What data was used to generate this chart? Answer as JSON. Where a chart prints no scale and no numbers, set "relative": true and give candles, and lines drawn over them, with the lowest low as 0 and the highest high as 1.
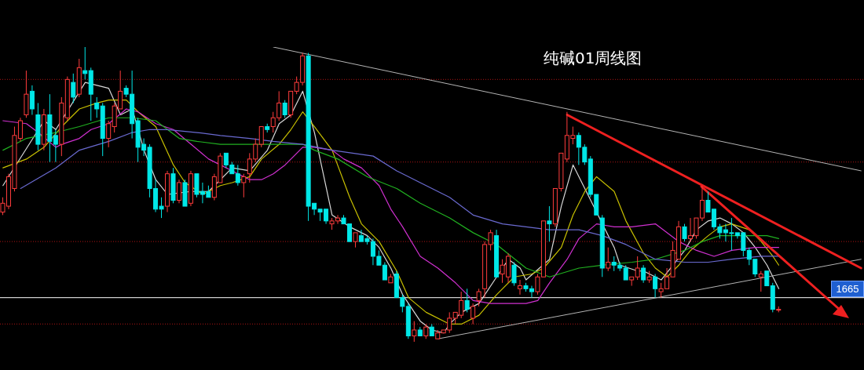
{
  "chart_data": {
    "type": "candlestick",
    "title": "纯碱01周线图",
    "relative": true,
    "tick_labels": false,
    "annotations": [
      "1665"
    ],
    "categories": [
      null,
      null,
      null,
      null,
      null,
      null,
      null,
      null,
      null,
      null,
      null,
      null,
      null,
      null,
      null,
      null,
      null,
      null,
      null,
      null,
      null,
      null,
      null,
      null,
      null,
      null,
      null,
      null,
      null,
      null,
      null,
      null,
      null,
      null,
      null,
      null,
      null,
      null,
      null,
      null,
      null,
      null,
      null,
      null,
      null,
      null,
      null,
      null,
      null,
      null,
      null,
      null,
      null,
      null,
      null,
      null,
      null,
      null,
      null,
      null,
      null,
      null,
      null,
      null,
      null,
      null,
      null,
      null,
      null,
      null,
      null,
      null,
      null,
      null,
      null,
      null,
      null,
      null,
      null,
      null,
      null,
      null,
      null,
      null,
      null,
      null,
      null,
      null,
      null,
      null,
      null,
      null,
      null,
      null,
      null,
      null,
      null,
      null,
      null,
      null,
      null,
      null,
      null,
      null,
      null,
      null,
      null,
      null,
      null,
      null,
      null,
      null,
      null,
      null,
      null,
      null,
      null,
      null,
      null,
      null,
      null,
      null,
      null,
      null,
      null,
      null,
      null,
      null,
      null,
      null,
      null,
      null,
      null,
      null,
      null,
      null,
      null,
      null,
      null,
      null,
      null,
      null,
      null,
      null,
      null,
      null,
      null
    ],
    "ohlc": [
      [
        0.44,
        0.49,
        0.43,
        0.47
      ],
      [
        0.46,
        0.57,
        0.45,
        0.56
      ],
      [
        0.52,
        0.73,
        0.51,
        0.7
      ],
      [
        0.69,
        0.76,
        0.68,
        0.75
      ],
      [
        0.77,
        0.92,
        0.76,
        0.84
      ],
      [
        0.85,
        0.87,
        0.77,
        0.79
      ],
      [
        0.77,
        0.81,
        0.65,
        0.67
      ],
      [
        0.67,
        0.79,
        0.65,
        0.77
      ],
      [
        0.77,
        0.84,
        0.61,
        0.68
      ],
      [
        0.7,
        0.72,
        0.61,
        0.67
      ],
      [
        0.67,
        0.83,
        0.63,
        0.81
      ],
      [
        0.76,
        0.9,
        0.75,
        0.89
      ],
      [
        0.88,
        0.91,
        0.81,
        0.83
      ],
      [
        0.84,
        0.96,
        0.83,
        0.93
      ],
      [
        0.92,
        1,
        0.89,
        0.91
      ],
      [
        0.92,
        0.93,
        0.75,
        0.84
      ],
      [
        0.81,
        0.83,
        0.76,
        0.79
      ],
      [
        0.8,
        0.81,
        0.63,
        0.69
      ],
      [
        0.69,
        0.75,
        0.66,
        0.74
      ],
      [
        0.73,
        0.81,
        0.71,
        0.8
      ],
      [
        0.79,
        0.92,
        0.79,
        0.85
      ],
      [
        0.86,
        0.87,
        0.83,
        0.84
      ],
      [
        0.84,
        0.92,
        0.69,
        0.74
      ],
      [
        0.75,
        0.76,
        0.61,
        0.66
      ],
      [
        0.67,
        0.69,
        0.63,
        0.65
      ],
      [
        0.66,
        0.67,
        0.49,
        0.52
      ],
      [
        0.52,
        0.55,
        0.44,
        0.45
      ],
      [
        0.46,
        0.49,
        0.42,
        0.45
      ],
      [
        0.46,
        0.58,
        0.44,
        0.57
      ],
      [
        0.57,
        0.59,
        0.47,
        0.48
      ],
      [
        0.48,
        0.55,
        0.47,
        0.54
      ],
      [
        0.54,
        0.55,
        0.46,
        0.46
      ],
      [
        0.47,
        0.58,
        0.46,
        0.57
      ],
      [
        0.57,
        0.57,
        0.49,
        0.5
      ],
      [
        0.51,
        0.54,
        0.47,
        0.5
      ],
      [
        0.51,
        0.53,
        0.49,
        0.49
      ],
      [
        0.49,
        0.57,
        0.48,
        0.56
      ],
      [
        0.54,
        0.64,
        0.54,
        0.63
      ],
      [
        0.64,
        0.64,
        0.59,
        0.6
      ],
      [
        0.6,
        0.61,
        0.57,
        0.57
      ],
      [
        0.57,
        0.6,
        0.53,
        0.54
      ],
      [
        0.54,
        0.57,
        0.49,
        0.56
      ],
      [
        0.57,
        0.64,
        0.54,
        0.62
      ],
      [
        0.62,
        0.69,
        0.61,
        0.67
      ],
      [
        0.67,
        0.73,
        0.66,
        0.73
      ],
      [
        0.73,
        0.74,
        0.71,
        0.72
      ],
      [
        0.73,
        0.78,
        0.71,
        0.76
      ],
      [
        0.76,
        0.85,
        0.75,
        0.81
      ],
      [
        0.81,
        0.82,
        0.76,
        0.77
      ],
      [
        0.77,
        0.85,
        0.76,
        0.85
      ],
      [
        0.85,
        0.9,
        0.84,
        0.88
      ],
      [
        0.88,
        0.98,
        0.87,
        0.97
      ],
      [
        0.97,
        0.98,
        0.41,
        0.46
      ],
      [
        0.47,
        0.47,
        0.43,
        0.45
      ],
      [
        0.45,
        0.45,
        0.41,
        0.44
      ],
      [
        0.45,
        0.45,
        0.4,
        0.41
      ],
      [
        0.4,
        0.42,
        0.38,
        0.41
      ],
      [
        0.41,
        0.43,
        0.4,
        0.42
      ],
      [
        0.42,
        0.43,
        0.4,
        0.4
      ],
      [
        0.4,
        0.4,
        0.34,
        0.34
      ],
      [
        0.34,
        0.37,
        0.32,
        0.37
      ],
      [
        0.36,
        0.38,
        0.34,
        0.34
      ],
      [
        0.35,
        0.36,
        0.33,
        0.34
      ],
      [
        0.34,
        0.35,
        0.26,
        0.29
      ],
      [
        0.29,
        0.31,
        0.26,
        0.26
      ],
      [
        0.26,
        0.27,
        0.21,
        0.21
      ],
      [
        0.2,
        0.23,
        0.2,
        0.22
      ],
      [
        0.23,
        0.24,
        0.15,
        0.15
      ],
      [
        0.15,
        0.16,
        0.1,
        0.12
      ],
      [
        0.12,
        0.13,
        0.01,
        0.02
      ],
      [
        0.02,
        0.07,
        0,
        0.04
      ],
      [
        0.04,
        0.05,
        0.02,
        0.02
      ],
      [
        0.02,
        0.06,
        0.01,
        0.05
      ],
      [
        0.05,
        0.06,
        0.02,
        0.02
      ],
      [
        0.01,
        0.04,
        0.01,
        0.03
      ],
      [
        0.03,
        0.04,
        0.03,
        0.04
      ],
      [
        0.04,
        0.1,
        0.03,
        0.08
      ],
      [
        0.08,
        0.1,
        0.06,
        0.1
      ],
      [
        0.09,
        0.17,
        0.08,
        0.14
      ],
      [
        0.14,
        0.18,
        0.1,
        0.11
      ],
      [
        0.08,
        0.13,
        0.06,
        0.12
      ],
      [
        0.14,
        0.18,
        0.12,
        0.17
      ],
      [
        0.18,
        0.34,
        0.15,
        0.33
      ],
      [
        0.33,
        0.38,
        0.31,
        0.37
      ],
      [
        0.36,
        0.38,
        0.22,
        0.22
      ],
      [
        0.23,
        0.28,
        0.2,
        0.26
      ],
      [
        0.22,
        0.3,
        0.2,
        0.29
      ],
      [
        0.26,
        0.27,
        0.19,
        0.2
      ],
      [
        0.18,
        0.21,
        0.16,
        0.19
      ],
      [
        0.19,
        0.2,
        0.17,
        0.18
      ],
      [
        0.18,
        0.19,
        0.15,
        0.17
      ],
      [
        0.17,
        0.23,
        0.16,
        0.22
      ],
      [
        0.22,
        0.41,
        0.22,
        0.41
      ],
      [
        0.41,
        0.46,
        0.34,
        0.4
      ],
      [
        0.4,
        0.52,
        0.39,
        0.52
      ],
      [
        0.52,
        0.64,
        0.51,
        0.64
      ],
      [
        0.62,
        0.78,
        0.61,
        0.7
      ],
      [
        0.69,
        0.73,
        0.67,
        0.7
      ],
      [
        0.7,
        0.71,
        0.6,
        0.66
      ],
      [
        0.66,
        0.67,
        0.6,
        0.61
      ],
      [
        0.62,
        0.63,
        0.49,
        0.5
      ],
      [
        0.5,
        0.5,
        0.43,
        0.43
      ],
      [
        0.42,
        0.43,
        0.22,
        0.25
      ],
      [
        0.25,
        0.32,
        0.24,
        0.27
      ],
      [
        0.27,
        0.29,
        0.24,
        0.26
      ],
      [
        0.26,
        0.27,
        0.24,
        0.25
      ],
      [
        0.25,
        0.26,
        0.21,
        0.21
      ],
      [
        0.21,
        0.22,
        0.19,
        0.22
      ],
      [
        0.22,
        0.29,
        0.21,
        0.25
      ],
      [
        0.25,
        0.26,
        0.2,
        0.21
      ],
      [
        0.21,
        0.24,
        0.2,
        0.22
      ],
      [
        0.22,
        0.23,
        0.15,
        0.18
      ],
      [
        0.17,
        0.2,
        0.15,
        0.18
      ],
      [
        0.18,
        0.25,
        0.18,
        0.22
      ],
      [
        0.22,
        0.34,
        0.22,
        0.31
      ],
      [
        0.28,
        0.41,
        0.28,
        0.39
      ],
      [
        0.39,
        0.4,
        0.34,
        0.35
      ],
      [
        0.35,
        0.42,
        0.34,
        0.36
      ],
      [
        0.36,
        0.42,
        0.35,
        0.42
      ],
      [
        0.42,
        0.53,
        0.41,
        0.48
      ],
      [
        0.48,
        0.51,
        0.44,
        0.44
      ],
      [
        0.45,
        0.45,
        0.38,
        0.39
      ],
      [
        0.39,
        0.4,
        0.35,
        0.37
      ],
      [
        0.38,
        0.4,
        0.34,
        0.37
      ],
      [
        0.37,
        0.42,
        0.31,
        0.37
      ],
      [
        0.37,
        0.37,
        0.35,
        0.36
      ],
      [
        0.37,
        0.37,
        0.29,
        0.31
      ],
      [
        0.31,
        0.32,
        0.26,
        0.28
      ],
      [
        0.28,
        0.28,
        0.22,
        0.23
      ],
      [
        0.22,
        0.24,
        0.17,
        0.23
      ],
      [
        0.24,
        0.24,
        0.19,
        0.19
      ],
      [
        0.19,
        0.2,
        0.1,
        0.11
      ],
      [
        0.11,
        0.12,
        0.1,
        0.11
      ],
      null,
      null,
      null,
      null,
      null,
      null,
      null,
      null,
      null,
      null,
      null,
      null,
      null,
      null
    ],
    "colors": [
      "#ff3c3c",
      "#ff3c3c",
      "#ff3c3c",
      "#ff3c3c",
      "#ff3c3c",
      "#00e8e8",
      "#00e8e8",
      "#ff3c3c",
      "#00e8e8",
      "#00e8e8",
      "#ff3c3c",
      "#ff3c3c",
      "#00e8e8",
      "#ff3c3c",
      "#00e8e8",
      "#00e8e8",
      "#00e8e8",
      "#00e8e8",
      "#ff3c3c",
      "#ff3c3c",
      "#ff3c3c",
      "#00e8e8",
      "#00e8e8",
      "#00e8e8",
      "#00e8e8",
      "#00e8e8",
      "#00e8e8",
      "#00e8e8",
      "#ff3c3c",
      "#00e8e8",
      "#ff3c3c",
      "#00e8e8",
      "#ff3c3c",
      "#00e8e8",
      "#00e8e8",
      "#00e8e8",
      "#ff3c3c",
      "#ff3c3c",
      "#00e8e8",
      "#00e8e8",
      "#00e8e8",
      "#ff3c3c",
      "#ff3c3c",
      "#ff3c3c",
      "#ff3c3c",
      "#00e8e8",
      "#ff3c3c",
      "#ff3c3c",
      "#00e8e8",
      "#ff3c3c",
      "#ff3c3c",
      "#ff3c3c",
      "#00e8e8",
      "#00e8e8",
      "#00e8e8",
      "#00e8e8",
      "#ff3c3c",
      "#ff3c3c",
      "#00e8e8",
      "#00e8e8",
      "#ff3c3c",
      "#00e8e8",
      "#00e8e8",
      "#00e8e8",
      "#00e8e8",
      "#00e8e8",
      "#ff3c3c",
      "#00e8e8",
      "#00e8e8",
      "#00e8e8",
      "#ff3c3c",
      "#00e8e8",
      "#ff3c3c",
      "#00e8e8",
      "#ff3c3c",
      "#ff3c3c",
      "#ff3c3c",
      "#ff3c3c",
      "#ff3c3c",
      "#00e8e8",
      "#ff3c3c",
      "#ff3c3c",
      "#ff3c3c",
      "#ff3c3c",
      "#00e8e8",
      "#ff3c3c",
      "#ff3c3c",
      "#00e8e8",
      "#ff3c3c",
      "#00e8e8",
      "#00e8e8",
      "#ff3c3c",
      "#ff3c3c",
      "#00e8e8",
      "#ff3c3c",
      "#ff3c3c",
      "#ff3c3c",
      "#ff3c3c",
      "#00e8e8",
      "#00e8e8",
      "#00e8e8",
      "#00e8e8",
      "#00e8e8",
      "#ff3c3c",
      "#00e8e8",
      "#00e8e8",
      "#00e8e8",
      "#ff3c3c",
      "#ff3c3c",
      "#00e8e8",
      "#ff3c3c",
      "#00e8e8",
      "#ff3c3c",
      "#ff3c3c",
      "#ff3c3c",
      "#ff3c3c",
      "#00e8e8",
      "#ff3c3c",
      "#ff3c3c",
      "#ff3c3c",
      "#00e8e8",
      "#00e8e8",
      "#00e8e8",
      "#00e8e8",
      "#00e8e8",
      "#00e8e8",
      "#00e8e8",
      "#00e8e8",
      "#00e8e8",
      "#ff3c3c",
      "#00e8e8",
      "#00e8e8",
      "#ff3c3c",
      null,
      null,
      null,
      null,
      null,
      null,
      null,
      null,
      null,
      null,
      null,
      null,
      null,
      null
    ],
    "series": [
      {
        "type": "line",
        "color": "#d8d8d8",
        "values": [
          0.53,
          null,
          null,
          null,
          null,
          null,
          null,
          0.75,
          null,
          0.72,
          null,
          null,
          null,
          null,
          0.88,
          null,
          null,
          null,
          0.86,
          null,
          0.77,
          null,
          0.79,
          null,
          0.65,
          null,
          0.55,
          null,
          0.5,
          null,
          null,
          null,
          0.51,
          null,
          null,
          0.51,
          null,
          null,
          null,
          0.59,
          null,
          null,
          0.58,
          null,
          null,
          0.65,
          null,
          0.74,
          null,
          0.77,
          null,
          0.85,
          null,
          0.71,
          null,
          null,
          0.43,
          null,
          null,
          0.39,
          null,
          null,
          0.36,
          null,
          0.32,
          null,
          0.25,
          null,
          0.16,
          null,
          null,
          0.07,
          null,
          0.04,
          null,
          0.03,
          0.06,
          null,
          0.1,
          null,
          null,
          0.13,
          null,
          null,
          0.22,
          null,
          0.28,
          null,
          0.25,
          0.21,
          null,
          null,
          null,
          0.28,
          null,
          0.46,
          null,
          0.6,
          null,
          null,
          null,
          null,
          null,
          null,
          0.32,
          0.26,
          null,
          null,
          0.24,
          0.24,
          null,
          null,
          0.21,
          null,
          null,
          null,
          0.31,
          null,
          0.38,
          null,
          0.41,
          null,
          0.42,
          null,
          0.4,
          null,
          0.37,
          null,
          0.32,
          null,
          0.26,
          null,
          0.18,
          null,
          null,
          null,
          null,
          null,
          null,
          null,
          null,
          null,
          null,
          null,
          null,
          null,
          null
        ]
      },
      {
        "type": "line",
        "color": "#c8c000",
        "values": [
          0.59,
          null,
          null,
          null,
          0.62,
          null,
          null,
          0.66,
          null,
          null,
          0.73,
          null,
          null,
          0.79,
          null,
          null,
          0.81,
          null,
          0.82,
          null,
          null,
          0.82,
          null,
          0.78,
          null,
          null,
          0.73,
          null,
          null,
          0.6,
          null,
          0.54,
          null,
          null,
          0.5,
          null,
          null,
          0.53,
          null,
          0.54,
          null,
          null,
          0.56,
          null,
          0.62,
          null,
          null,
          0.67,
          null,
          0.72,
          null,
          0.78,
          null,
          0.73,
          null,
          null,
          0.65,
          null,
          null,
          0.49,
          null,
          0.4,
          null,
          null,
          0.34,
          null,
          null,
          0.24,
          null,
          0.15,
          null,
          null,
          0.1,
          null,
          null,
          null,
          0.06,
          null,
          0.06,
          null,
          null,
          0.09,
          null,
          null,
          0.16,
          null,
          null,
          0.22,
          null,
          null,
          0.23,
          null,
          0.25,
          null,
          null,
          0.32,
          null,
          0.43,
          null,
          0.51,
          null,
          0.56,
          null,
          null,
          0.51,
          null,
          0.41,
          null,
          null,
          0.3,
          null,
          0.25,
          null,
          0.22,
          null,
          0.26,
          null,
          0.31,
          null,
          null,
          0.36,
          null,
          0.39,
          null,
          0.4,
          null,
          null,
          0.38,
          null,
          0.34,
          null,
          0.29,
          0.26,
          null,
          null,
          null,
          null,
          null,
          null,
          null,
          null,
          null,
          null,
          null,
          null,
          null,
          null
        ]
      },
      {
        "type": "line",
        "color": "#d030d0",
        "values": [
          0.75,
          null,
          null,
          null,
          0.74,
          null,
          0.71,
          null,
          null,
          0.66,
          0.67,
          null,
          null,
          0.69,
          null,
          0.72,
          null,
          null,
          0.74,
          null,
          null,
          0.79,
          null,
          0.78,
          null,
          null,
          0.74,
          null,
          null,
          0.72,
          null,
          null,
          0.67,
          null,
          null,
          0.62,
          null,
          0.6,
          null,
          0.58,
          null,
          null,
          0.55,
          null,
          0.55,
          null,
          0.57,
          null,
          0.6,
          null,
          null,
          0.66,
          null,
          0.66,
          null,
          null,
          0.65,
          null,
          0.62,
          null,
          null,
          0.59,
          null,
          null,
          0.53,
          null,
          0.45,
          null,
          0.39,
          null,
          null,
          0.29,
          null,
          null,
          0.25,
          null,
          null,
          0.2,
          null,
          null,
          0.14,
          null,
          null,
          0.13,
          null,
          0.13,
          null,
          null,
          null,
          0.13,
          null,
          0.14,
          null,
          0.2,
          null,
          null,
          0.28,
          null,
          0.35,
          null,
          null,
          0.4,
          null,
          null,
          0.39,
          null,
          null,
          0.39,
          null,
          null,
          null,
          0.4,
          null,
          null,
          null,
          0.34,
          null,
          null,
          0.31,
          null,
          null,
          0.29,
          null,
          null,
          0.31,
          null,
          null,
          null,
          0.32,
          null,
          null,
          null,
          0.32,
          null,
          null,
          null,
          null,
          null,
          null,
          null,
          null,
          null,
          null,
          null,
          null,
          null,
          null
        ]
      },
      {
        "type": "line",
        "color": "#20b020",
        "values": [
          0.65,
          null,
          null,
          null,
          0.69,
          null,
          null,
          null,
          null,
          0.71,
          null,
          null,
          null,
          0.73,
          null,
          null,
          null,
          null,
          0.76,
          null,
          null,
          null,
          0.76,
          null,
          null,
          null,
          0.75,
          null,
          null,
          null,
          0.69,
          null,
          null,
          0.68,
          null,
          null,
          null,
          0.67,
          null,
          null,
          null,
          null,
          0.67,
          null,
          null,
          null,
          0.67,
          null,
          null,
          null,
          null,
          0.67,
          null,
          0.65,
          null,
          null,
          null,
          0.62,
          null,
          null,
          null,
          null,
          0.56,
          null,
          null,
          null,
          null,
          0.52,
          null,
          null,
          null,
          0.47,
          null,
          null,
          null,
          null,
          0.42,
          null,
          null,
          null,
          0.37,
          null,
          null,
          null,
          0.33,
          null,
          null,
          null,
          null,
          0.25,
          null,
          null,
          null,
          0.22,
          null,
          null,
          null,
          null,
          0.25,
          null,
          null,
          null,
          0.26,
          null,
          null,
          null,
          null,
          0.27,
          null,
          null,
          null,
          0.28,
          null,
          null,
          null,
          null,
          0.31,
          null,
          null,
          0.34,
          null,
          null,
          0.36,
          null,
          null,
          null,
          null,
          0.36,
          null,
          null,
          0.36,
          null,
          0.35,
          null,
          null,
          null,
          null,
          null,
          null,
          null,
          null,
          null,
          null,
          null,
          null,
          null,
          null
        ]
      },
      {
        "type": "line",
        "color": "#6a6ad0",
        "values": [
          null,
          null,
          null,
          0.52,
          null,
          null,
          null,
          null,
          null,
          0.59,
          null,
          null,
          null,
          0.65,
          null,
          null,
          null,
          null,
          0.68,
          null,
          null,
          null,
          0.71,
          null,
          null,
          0.72,
          null,
          null,
          0.72,
          null,
          null,
          null,
          null,
          0.71,
          null,
          null,
          null,
          0.7,
          null,
          null,
          null,
          null,
          0.69,
          null,
          null,
          null,
          0.68,
          null,
          null,
          null,
          null,
          0.67,
          null,
          null,
          null,
          null,
          0.65,
          null,
          null,
          null,
          null,
          null,
          null,
          0.63,
          null,
          null,
          null,
          0.58,
          null,
          null,
          null,
          0.54,
          null,
          null,
          null,
          null,
          0.49,
          null,
          null,
          null,
          0.43,
          null,
          null,
          null,
          null,
          0.4,
          null,
          null,
          null,
          0.39,
          null,
          null,
          null,
          0.38,
          null,
          null,
          null,
          null,
          0.38,
          null,
          null,
          null,
          0.36,
          null,
          null,
          null,
          0.33,
          null,
          null,
          null,
          null,
          0.28,
          null,
          null,
          null,
          null,
          0.27,
          null,
          null,
          null,
          0.27,
          null,
          null,
          null,
          0.28,
          null,
          null,
          null,
          null,
          0.29,
          null,
          null,
          0.29,
          null,
          null,
          null,
          null,
          null,
          null,
          null,
          null,
          null,
          null,
          null,
          null,
          null,
          null
        ]
      },
      {
        "type": "line",
        "color": "#b4b4b4",
        "values": [
          null,
          null,
          null,
          null,
          null,
          null,
          null,
          null,
          null,
          null,
          null,
          null,
          null,
          null,
          null,
          null,
          null,
          null,
          null,
          null,
          null,
          null,
          null,
          null,
          null,
          null,
          null,
          null,
          null,
          null,
          null,
          null,
          null,
          null,
          null,
          null,
          null,
          null,
          null,
          null,
          null,
          null,
          null,
          null,
          null,
          null,
          1,
          null,
          null,
          null,
          null,
          null,
          null,
          null,
          null,
          null,
          null,
          null,
          null,
          null,
          null,
          null,
          null,
          null,
          null,
          null,
          null,
          null,
          null,
          null,
          null,
          null,
          null,
          null,
          null,
          null,
          null,
          null,
          null,
          null,
          null,
          null,
          null,
          null,
          null,
          null,
          null,
          null,
          null,
          null,
          null,
          null,
          null,
          null,
          null,
          null,
          null,
          null,
          null,
          null,
          null,
          null,
          null,
          null,
          null,
          null,
          null,
          null,
          null,
          null,
          null,
          null,
          null,
          null,
          null,
          null,
          null,
          null,
          null,
          null,
          null,
          null,
          null,
          null,
          null,
          null,
          null,
          null,
          null,
          null,
          null,
          null,
          null,
          null,
          null,
          null,
          null,
          null,
          null,
          null,
          null,
          null,
          null,
          null,
          null,
          null,
          0.58
        ]
      },
      {
        "type": "line",
        "color": "#b4b4b4",
        "values": [
          null,
          null,
          null,
          null,
          null,
          null,
          null,
          null,
          null,
          null,
          null,
          null,
          null,
          null,
          null,
          null,
          null,
          null,
          null,
          null,
          null,
          null,
          null,
          null,
          null,
          null,
          null,
          null,
          null,
          null,
          null,
          null,
          null,
          null,
          null,
          null,
          null,
          null,
          null,
          null,
          null,
          null,
          null,
          null,
          null,
          null,
          null,
          null,
          null,
          null,
          null,
          null,
          null,
          null,
          null,
          null,
          null,
          null,
          null,
          null,
          null,
          null,
          null,
          null,
          null,
          null,
          null,
          null,
          null,
          null,
          null,
          null,
          null,
          null,
          0.01,
          null,
          null,
          null,
          null,
          null,
          null,
          null,
          null,
          null,
          null,
          null,
          null,
          null,
          null,
          null,
          null,
          null,
          null,
          null,
          null,
          null,
          null,
          null,
          null,
          null,
          null,
          null,
          null,
          null,
          null,
          null,
          null,
          null,
          null,
          null,
          null,
          null,
          null,
          null,
          null,
          null,
          null,
          null,
          null,
          null,
          null,
          null,
          null,
          null,
          null,
          null,
          null,
          null,
          null,
          null,
          null,
          null,
          null,
          null,
          null,
          null,
          null,
          null,
          null,
          null,
          null,
          null,
          null,
          null,
          null,
          null,
          0.28
        ]
      },
      {
        "type": "line",
        "color": "#ee2020",
        "values": [
          null,
          null,
          null,
          null,
          null,
          null,
          null,
          null,
          null,
          null,
          null,
          null,
          null,
          null,
          null,
          null,
          null,
          null,
          null,
          null,
          null,
          null,
          null,
          null,
          null,
          null,
          null,
          null,
          null,
          null,
          null,
          null,
          null,
          null,
          null,
          null,
          null,
          null,
          null,
          null,
          null,
          null,
          null,
          null,
          null,
          null,
          null,
          null,
          null,
          null,
          null,
          null,
          null,
          null,
          null,
          null,
          null,
          null,
          null,
          null,
          null,
          null,
          null,
          null,
          null,
          null,
          null,
          null,
          null,
          null,
          null,
          null,
          null,
          null,
          null,
          null,
          null,
          null,
          null,
          null,
          null,
          null,
          null,
          null,
          null,
          null,
          null,
          null,
          null,
          null,
          null,
          null,
          null,
          null,
          null,
          null,
          0.77,
          null,
          null,
          null,
          null,
          null,
          null,
          null,
          null,
          null,
          null,
          null,
          null,
          null,
          null,
          null,
          null,
          null,
          null,
          null,
          null,
          null,
          null,
          null,
          null,
          null,
          null,
          null,
          null,
          null,
          null,
          null,
          null,
          null,
          null,
          null,
          null,
          null,
          null,
          null,
          null,
          null,
          null,
          null,
          null,
          null,
          null,
          null,
          null,
          null,
          0.25
        ]
      }
    ],
    "ref_lines": [
      {
        "axis": "y",
        "value": 0.15,
        "color": "#d0d0d0",
        "line_style": "solid"
      },
      {
        "axis": "y",
        "value": 0.89,
        "color": "#8a1010",
        "line_style": "dotted"
      },
      {
        "axis": "y",
        "value": 0.61,
        "color": "#8a1010",
        "line_style": "dotted"
      },
      {
        "axis": "y",
        "value": 0.34,
        "color": "#8a1010",
        "line_style": "dotted"
      },
      {
        "axis": "y",
        "value": 0.06,
        "color": "#8a1010",
        "line_style": "dotted"
      }
    ]
  }
}
